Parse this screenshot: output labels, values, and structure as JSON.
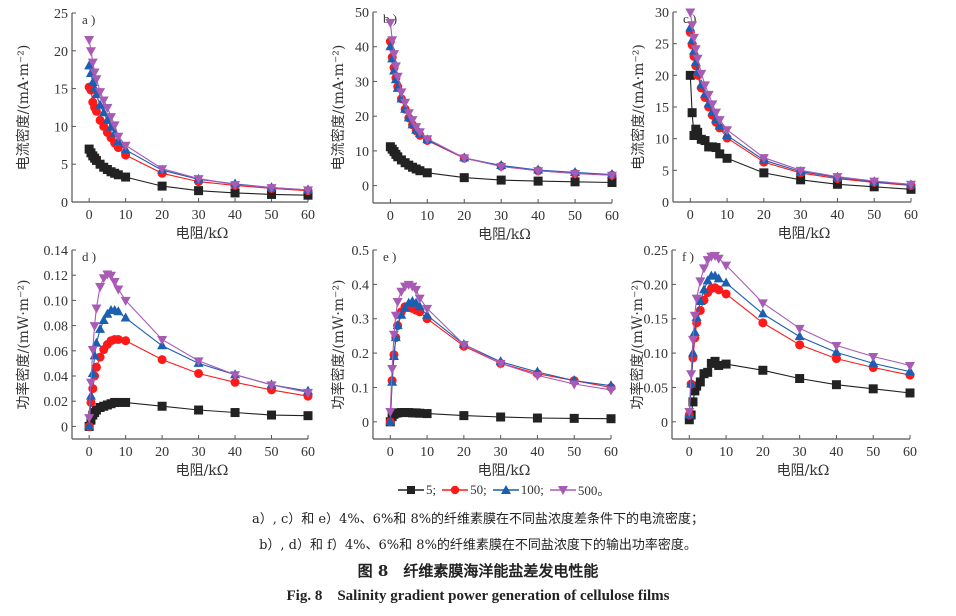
{
  "colors": {
    "5": "#222222",
    "50": "#ff1a1a",
    "100": "#1b5fb0",
    "500": "#a85bb5"
  },
  "legend": [
    {
      "label": "5;",
      "marker": "square",
      "color": "#222222"
    },
    {
      "label": "50;",
      "marker": "circle",
      "color": "#ff1a1a"
    },
    {
      "label": "100;",
      "marker": "triangle-up",
      "color": "#1b5fb0"
    },
    {
      "label": "500。",
      "marker": "triangle-down",
      "color": "#a85bb5"
    }
  ],
  "captions": {
    "line1": "a）, c）和 e）4%、6%和 8%的纤维素膜在不同盐浓度差条件下的电流密度；",
    "line2": "b）, d）和 f）4%、6%和 8%的纤维素膜在不同盐浓度下的输出功率密度。",
    "title_cn": "图 8　纤维素膜海洋能盐差发电性能",
    "title_en": "Fig. 8　Salinity gradient power generation of cellulose films"
  },
  "chart_data": [
    {
      "panel": "a )",
      "type": "line",
      "xlabel": "电阻/kΩ",
      "ylabel": "电流密度/(mA·m⁻²)",
      "xlim": [
        -4.7,
        60
      ],
      "ylim": [
        0,
        25
      ],
      "xticks": [
        "0",
        "10",
        "20",
        "30",
        "40",
        "50",
        "60"
      ],
      "yticks": [
        "0",
        "5",
        "10",
        "15",
        "20",
        "25"
      ],
      "x": [
        0,
        0.5,
        1,
        1.5,
        2,
        3,
        4,
        5,
        6,
        7,
        8,
        10,
        20,
        30,
        40,
        50,
        60
      ],
      "series": [
        {
          "name": "5",
          "values": [
            7.0,
            6.5,
            6.1,
            5.8,
            5.5,
            5.0,
            4.6,
            4.3,
            4.0,
            3.8,
            3.6,
            3.3,
            2.1,
            1.5,
            1.2,
            1.0,
            0.9
          ]
        },
        {
          "name": "50",
          "values": [
            15.2,
            14.8,
            13.2,
            12.5,
            12.0,
            10.8,
            10.0,
            9.2,
            8.5,
            7.8,
            7.2,
            6.2,
            3.8,
            2.7,
            2.2,
            1.8,
            1.5
          ]
        },
        {
          "name": "100",
          "values": [
            18.0,
            17.0,
            15.8,
            15.0,
            14.2,
            12.8,
            11.8,
            10.8,
            9.9,
            9.1,
            8.0,
            6.9,
            4.2,
            3.0,
            2.4,
            1.9,
            1.6
          ]
        },
        {
          "name": "500",
          "values": [
            21.5,
            20.0,
            18.5,
            17.2,
            16.3,
            14.6,
            13.5,
            12.5,
            11.3,
            10.2,
            8.7,
            7.5,
            4.4,
            3.1,
            2.3,
            1.9,
            1.6
          ]
        }
      ]
    },
    {
      "panel": "b )",
      "type": "line",
      "xlabel": "电阻/kΩ",
      "ylabel": "电流密度/(mA·m⁻²)",
      "xlim": [
        -4.7,
        60
      ],
      "ylim": [
        -5,
        50
      ],
      "xticks": [
        "0",
        "10",
        "20",
        "30",
        "40",
        "50",
        "60"
      ],
      "yticks": [
        "0",
        "10",
        "20",
        "30",
        "40",
        "50"
      ],
      "x": [
        0,
        0.5,
        1,
        1.5,
        2,
        3,
        4,
        5,
        6,
        7,
        8,
        10,
        20,
        30,
        40,
        50,
        60
      ],
      "series": [
        {
          "name": "5",
          "values": [
            11.2,
            10.5,
            9.8,
            9.0,
            8.3,
            7.4,
            6.6,
            5.9,
            5.3,
            4.8,
            4.3,
            3.7,
            2.3,
            1.6,
            1.3,
            1.1,
            0.9
          ]
        },
        {
          "name": "50",
          "values": [
            41.5,
            37,
            34,
            31,
            28.5,
            25,
            22,
            19.5,
            17.5,
            15.8,
            14.5,
            13.0,
            7.9,
            5.6,
            4.3,
            3.5,
            3.0
          ]
        },
        {
          "name": "100",
          "values": [
            40,
            36.5,
            33,
            30.5,
            28,
            25,
            22,
            19.5,
            17.5,
            16,
            15,
            13.2,
            8.0,
            5.8,
            4.5,
            3.8,
            3.2
          ]
        },
        {
          "name": "500",
          "values": [
            47,
            42,
            38,
            34.5,
            31.5,
            27,
            24,
            21,
            19,
            17,
            15.5,
            13.5,
            8.0,
            5.5,
            4.3,
            3.5,
            3.0
          ]
        }
      ]
    },
    {
      "panel": "c )",
      "type": "line",
      "xlabel": "电阻/kΩ",
      "ylabel": "电流密度/(mA·m⁻²)",
      "xlim": [
        -4.7,
        60
      ],
      "ylim": [
        0,
        30
      ],
      "xticks": [
        "0",
        "10",
        "20",
        "30",
        "40",
        "50",
        "60"
      ],
      "yticks": [
        "0",
        "5",
        "10",
        "15",
        "20",
        "25",
        "30"
      ],
      "x": [
        0,
        0.5,
        1,
        1.5,
        2,
        3,
        4,
        5,
        6,
        7,
        8,
        10,
        20,
        30,
        40,
        50,
        60
      ],
      "series": [
        {
          "name": "5",
          "values": [
            20,
            14.1,
            10.5,
            11.5,
            11.0,
            9.9,
            9.7,
            8.7,
            8.7,
            8.6,
            7.6,
            6.9,
            4.6,
            3.5,
            2.8,
            2.4,
            2.0
          ]
        },
        {
          "name": "50",
          "values": [
            26.8,
            24.8,
            23,
            21.5,
            20,
            18,
            16.5,
            15,
            13.7,
            12.6,
            11.7,
            10.1,
            6.3,
            4.6,
            3.7,
            3.1,
            2.6
          ]
        },
        {
          "name": "100",
          "values": [
            27.5,
            25.5,
            23.8,
            22,
            20.5,
            18.5,
            17,
            15.5,
            14.2,
            13,
            12,
            10.5,
            6.6,
            4.8,
            3.9,
            3.2,
            2.7
          ]
        },
        {
          "name": "500",
          "values": [
            30,
            28,
            26,
            24.2,
            22.7,
            20.3,
            18.5,
            17,
            15.5,
            14.2,
            13,
            11.4,
            7.0,
            5.0,
            4.0,
            3.3,
            2.8
          ]
        }
      ]
    },
    {
      "panel": "d )",
      "type": "line",
      "xlabel": "电阻/kΩ",
      "ylabel": "功率密度/(mW·m⁻²)",
      "xlim": [
        -4.7,
        60
      ],
      "ylim": [
        -0.01,
        0.14
      ],
      "xticks": [
        "0",
        "10",
        "20",
        "30",
        "40",
        "50",
        "60"
      ],
      "yticks": [
        "0",
        "0.02",
        "0.04",
        "0.06",
        "0.08",
        "0.10",
        "0.12",
        "0.14"
      ],
      "x": [
        0,
        0.5,
        1,
        1.5,
        2,
        3,
        4,
        5,
        6,
        7,
        8,
        10,
        20,
        30,
        40,
        50,
        60
      ],
      "series": [
        {
          "name": "5",
          "values": [
            0,
            0.005,
            0.009,
            0.011,
            0.013,
            0.015,
            0.016,
            0.017,
            0.018,
            0.019,
            0.019,
            0.019,
            0.016,
            0.013,
            0.011,
            0.009,
            0.0085
          ]
        },
        {
          "name": "50",
          "values": [
            0,
            0.019,
            0.03,
            0.04,
            0.047,
            0.055,
            0.061,
            0.065,
            0.068,
            0.069,
            0.069,
            0.068,
            0.053,
            0.042,
            0.035,
            0.029,
            0.024
          ]
        },
        {
          "name": "100",
          "values": [
            0,
            0.024,
            0.042,
            0.056,
            0.066,
            0.077,
            0.084,
            0.089,
            0.092,
            0.092,
            0.091,
            0.086,
            0.064,
            0.05,
            0.041,
            0.033,
            0.028
          ]
        },
        {
          "name": "500",
          "values": [
            0.007,
            0.035,
            0.061,
            0.08,
            0.094,
            0.111,
            0.118,
            0.121,
            0.12,
            0.115,
            0.109,
            0.1,
            0.069,
            0.052,
            0.041,
            0.033,
            0.027
          ]
        }
      ]
    },
    {
      "panel": "e )",
      "type": "line",
      "xlabel": "电阻/kΩ",
      "ylabel": "功率密度/(mW·m⁻²)",
      "xlim": [
        -4.7,
        60
      ],
      "ylim": [
        -0.05,
        0.5
      ],
      "xticks": [
        "0",
        "10",
        "20",
        "30",
        "40",
        "50",
        "60"
      ],
      "yticks": [
        "0",
        "0.1",
        "0.2",
        "0.3",
        "0.4",
        "0.5"
      ],
      "x": [
        0,
        0.5,
        1,
        1.5,
        2,
        3,
        4,
        5,
        6,
        7,
        8,
        10,
        20,
        30,
        40,
        50,
        60
      ],
      "series": [
        {
          "name": "5",
          "values": [
            0,
            0.015,
            0.022,
            0.025,
            0.026,
            0.027,
            0.027,
            0.027,
            0.026,
            0.026,
            0.025,
            0.024,
            0.018,
            0.014,
            0.011,
            0.01,
            0.009
          ]
        },
        {
          "name": "50",
          "values": [
            0,
            0.12,
            0.195,
            0.245,
            0.28,
            0.32,
            0.335,
            0.335,
            0.33,
            0.325,
            0.32,
            0.3,
            0.22,
            0.17,
            0.14,
            0.12,
            0.1
          ]
        },
        {
          "name": "100",
          "values": [
            0,
            0.115,
            0.19,
            0.245,
            0.28,
            0.31,
            0.33,
            0.345,
            0.35,
            0.345,
            0.335,
            0.31,
            0.225,
            0.175,
            0.145,
            0.12,
            0.105
          ]
        },
        {
          "name": "500",
          "values": [
            0.03,
            0.155,
            0.255,
            0.31,
            0.35,
            0.38,
            0.395,
            0.4,
            0.395,
            0.385,
            0.36,
            0.33,
            0.225,
            0.17,
            0.135,
            0.11,
            0.093
          ]
        }
      ]
    },
    {
      "panel": "f )",
      "type": "line",
      "xlabel": "电阻/kΩ",
      "ylabel": "功率密度/(mW·m⁻²)",
      "xlim": [
        -4.7,
        60
      ],
      "ylim": [
        -0.025,
        0.25
      ],
      "xticks": [
        "0",
        "10",
        "20",
        "30",
        "40",
        "50",
        "60"
      ],
      "yticks": [
        "0",
        "0.05",
        "0.10",
        "0.15",
        "0.20",
        "0.25"
      ],
      "x": [
        0,
        0.5,
        1,
        1.5,
        2,
        3,
        4,
        5,
        6,
        7,
        8,
        10,
        20,
        30,
        40,
        50,
        60
      ],
      "series": [
        {
          "name": "5",
          "values": [
            0.003,
            0.01,
            0.029,
            0.045,
            0.052,
            0.058,
            0.07,
            0.072,
            0.085,
            0.088,
            0.082,
            0.084,
            0.075,
            0.063,
            0.054,
            0.048,
            0.042
          ]
        },
        {
          "name": "50",
          "values": [
            0.01,
            0.055,
            0.093,
            0.122,
            0.144,
            0.162,
            0.177,
            0.188,
            0.194,
            0.195,
            0.192,
            0.186,
            0.144,
            0.112,
            0.092,
            0.079,
            0.068
          ]
        },
        {
          "name": "100",
          "values": [
            0.01,
            0.055,
            0.1,
            0.13,
            0.152,
            0.175,
            0.192,
            0.205,
            0.212,
            0.212,
            0.208,
            0.202,
            0.157,
            0.124,
            0.101,
            0.085,
            0.073
          ]
        },
        {
          "name": "500",
          "values": [
            0.015,
            0.07,
            0.12,
            0.155,
            0.18,
            0.205,
            0.224,
            0.236,
            0.241,
            0.242,
            0.238,
            0.228,
            0.173,
            0.136,
            0.111,
            0.095,
            0.082
          ]
        }
      ]
    }
  ]
}
